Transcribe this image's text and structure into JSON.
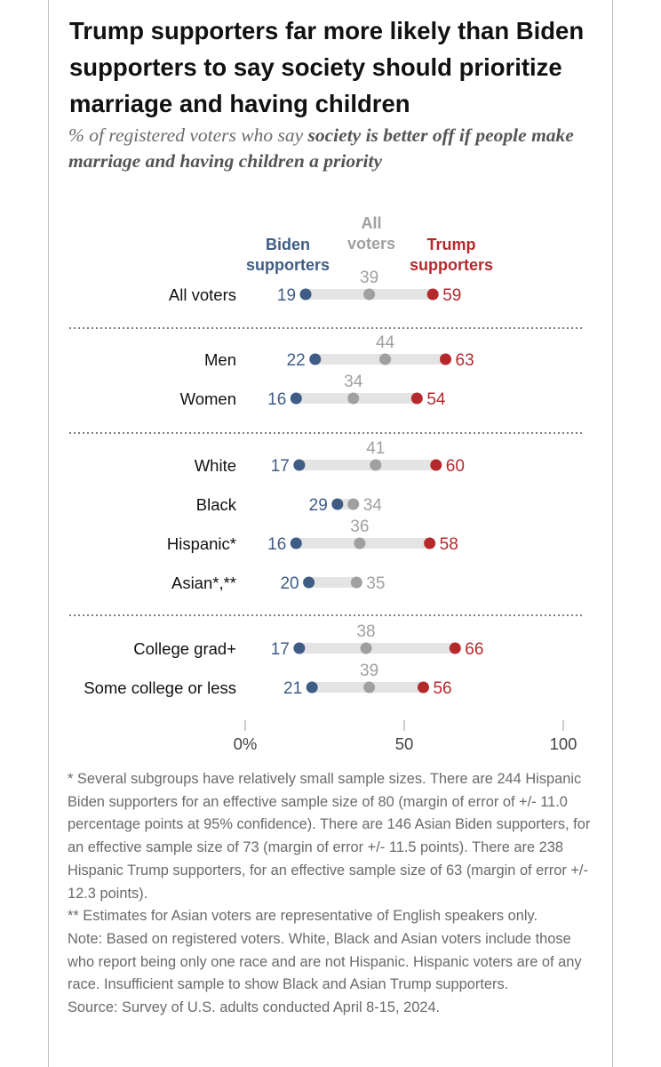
{
  "title": "Trump supporters far more likely than Biden supporters to say society should prioritize marriage and having children",
  "subtitle_prefix": "% of registered voters who say ",
  "subtitle_bold": "society is better off if people make marriage and having children a priority",
  "chart_data": {
    "type": "dot",
    "legend": [
      {
        "key": "biden",
        "label": "Biden supporters",
        "color": "#3f5c85"
      },
      {
        "key": "all",
        "label": "All voters",
        "color": "#a0a0a0"
      },
      {
        "key": "trump",
        "label": "Trump supporters",
        "color": "#b5282c"
      }
    ],
    "xlim": [
      0,
      100
    ],
    "x_ticks": [
      {
        "value": 0,
        "label": "0%"
      },
      {
        "value": 50,
        "label": "50"
      },
      {
        "value": 100,
        "label": "100"
      }
    ],
    "groups": [
      [
        {
          "label": "All voters",
          "biden": 19,
          "all": 39,
          "trump": 59
        }
      ],
      [
        {
          "label": "Men",
          "biden": 22,
          "all": 44,
          "trump": 63
        },
        {
          "label": "Women",
          "biden": 16,
          "all": 34,
          "trump": 54
        }
      ],
      [
        {
          "label": "White",
          "biden": 17,
          "all": 41,
          "trump": 60
        },
        {
          "label": "Black",
          "biden": 29,
          "all": 34,
          "trump": null
        },
        {
          "label": "Hispanic*",
          "biden": 16,
          "all": 36,
          "trump": 58
        },
        {
          "label": "Asian*,**",
          "biden": 20,
          "all": 35,
          "trump": null
        }
      ],
      [
        {
          "label": "College grad+",
          "biden": 17,
          "all": 38,
          "trump": 66
        },
        {
          "label": "Some college or less",
          "biden": 21,
          "all": 39,
          "trump": 56
        }
      ]
    ]
  },
  "notes": {
    "line1": "* Several subgroups have relatively small sample sizes. There are 244 Hispanic Biden supporters for an effective sample size of 80 (margin of error of +/- 11.0 percentage points at 95% confidence). There are 146 Asian Biden supporters, for an effective sample size of 73 (margin of error +/- 11.5 points). There are 238 Hispanic Trump supporters, for an effective sample size of 63 (margin of error +/- 12.3 points).",
    "line2": "** Estimates for Asian voters are representative of English speakers only.",
    "line3": "Note: Based on registered voters. White, Black and Asian voters include those who report being only one race and are not Hispanic. Hispanic voters are of any race. Insufficient sample to show Black and Asian Trump supporters.",
    "source": "Source: Survey of U.S. adults conducted April 8-15, 2024."
  }
}
